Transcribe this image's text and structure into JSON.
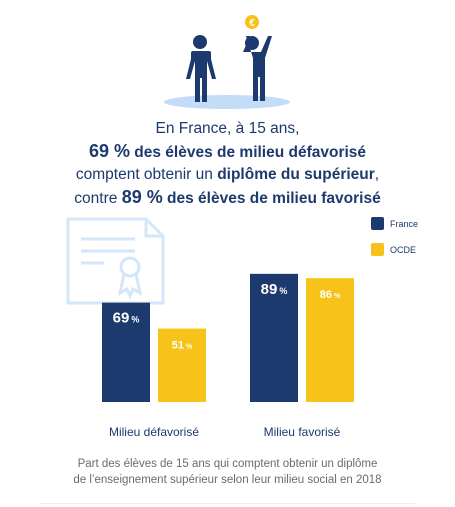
{
  "headline": {
    "line1": "En France, à 15 ans,",
    "line2_pct": "69 %",
    "line2_rest": "des élèves de milieu défavorisé",
    "line3_pre": "comptent obtenir un ",
    "line3_bold": "diplôme du supérieur",
    "line3_post": ",",
    "line4_pre": "contre ",
    "line4_pct": "89 %",
    "line4_rest": "des élèves de milieu favorisé"
  },
  "coin_symbol": "€",
  "colors": {
    "france": "#1d3a6e",
    "ocde": "#f7c21a",
    "ellipse": "#c3dcf7",
    "diploma": "#d4e6fa",
    "caption": "#6b6b6b"
  },
  "caption": {
    "line1": "Part des élèves de 15 ans qui comptent obtenir un diplôme",
    "line2": "de l’enseignement supérieur selon leur milieu social en 2018"
  },
  "chart_data": {
    "type": "bar",
    "categories": [
      "Milieu défavorisé",
      "Milieu favorisé"
    ],
    "series": [
      {
        "name": "France",
        "color": "#1d3a6e",
        "values": [
          69,
          89
        ],
        "labels": [
          "69",
          "89"
        ]
      },
      {
        "name": "OCDE",
        "color": "#f7c21a",
        "values": [
          51,
          86
        ],
        "labels": [
          "51",
          "86"
        ]
      }
    ],
    "value_unit": "%",
    "ylim": [
      0,
      100
    ],
    "legend": "top-right",
    "grid": false,
    "title": "",
    "xlabel": "",
    "ylabel": ""
  }
}
